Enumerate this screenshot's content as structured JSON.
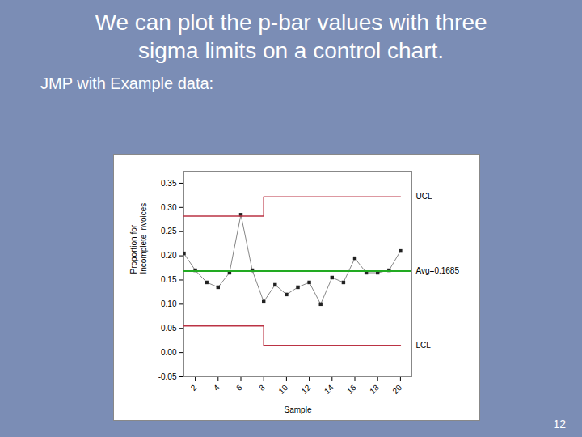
{
  "chart_data": {
    "type": "line",
    "title": "We can plot the p-bar values with three\n    sigma limits on a control chart.",
    "subtitle": "JMP with Example data:",
    "page_number": "12",
    "xlabel": "Sample",
    "ylabel": "Proportion for\nIncomplete invoices",
    "x": [
      1,
      2,
      3,
      4,
      5,
      6,
      7,
      8,
      9,
      10,
      11,
      12,
      13,
      14,
      15,
      16,
      17,
      18,
      19,
      20
    ],
    "series": [
      {
        "values": [
          0.205,
          0.17,
          0.145,
          0.135,
          0.165,
          0.285,
          0.17,
          0.105,
          0.14,
          0.12,
          0.135,
          0.145,
          0.1,
          0.155,
          0.145,
          0.195,
          0.165,
          0.165,
          0.17,
          0.21
        ],
        "color": "#222222",
        "marker": "square"
      },
      {
        "name": "UCL",
        "values": [
          0.282,
          0.282,
          0.282,
          0.282,
          0.282,
          0.282,
          0.282,
          0.322,
          0.322,
          0.322,
          0.322,
          0.322,
          0.322,
          0.322,
          0.322,
          0.322,
          0.322,
          0.322,
          0.322,
          0.322
        ],
        "color": "#bb3344",
        "line_style": "step"
      },
      {
        "name": "LCL",
        "values": [
          0.055,
          0.055,
          0.055,
          0.055,
          0.055,
          0.055,
          0.055,
          0.015,
          0.015,
          0.015,
          0.015,
          0.015,
          0.015,
          0.015,
          0.015,
          0.015,
          0.015,
          0.015,
          0.015,
          0.015
        ],
        "color": "#bb3344",
        "line_style": "step"
      }
    ],
    "hlines": [
      {
        "y": 0.1685,
        "label": "Avg=0.1685",
        "color": "#22aa22"
      }
    ],
    "xlim": [
      1,
      21
    ],
    "xticks": [
      2,
      4,
      6,
      8,
      10,
      12,
      14,
      16,
      18,
      20
    ],
    "ylim": [
      -0.05,
      0.375
    ],
    "yticks": [
      -0.05,
      {
        "value": 0.0,
        "label": "0.00"
      },
      0.05,
      {
        "value": 0.1,
        "label": "0.10"
      },
      0.15,
      {
        "value": 0.2,
        "label": "0.20"
      },
      0.25,
      {
        "value": 0.3,
        "label": "0.30"
      },
      0.35
    ],
    "grid": false
  }
}
